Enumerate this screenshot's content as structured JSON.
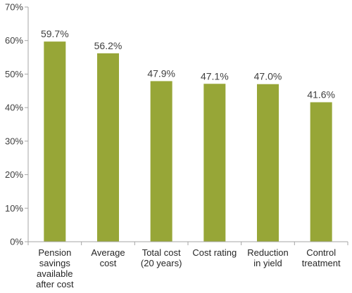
{
  "chart_data": {
    "type": "bar",
    "title": "",
    "xlabel": "",
    "ylabel": "",
    "categories": [
      [
        "Pension",
        "savings",
        "available",
        "after cost"
      ],
      [
        "Average",
        "cost"
      ],
      [
        "Total cost",
        "(20 years)"
      ],
      [
        "Cost rating"
      ],
      [
        "Reduction",
        "in yield"
      ],
      [
        "Control",
        "treatment"
      ]
    ],
    "values": [
      59.7,
      56.2,
      47.9,
      47.1,
      47.0,
      41.6
    ],
    "data_labels": [
      "59.7%",
      "56.2%",
      "47.9%",
      "47.1%",
      "47.0%",
      "41.6%"
    ],
    "ylim": [
      0,
      70
    ],
    "yticks": [
      0,
      10,
      20,
      30,
      40,
      50,
      60,
      70
    ],
    "ytick_labels": [
      "0%",
      "10%",
      "20%",
      "30%",
      "40%",
      "50%",
      "60%",
      "70%"
    ],
    "grid": false,
    "legend": "none",
    "colors": {
      "bar": "#97a637",
      "axis": "#a6a6a6"
    }
  }
}
